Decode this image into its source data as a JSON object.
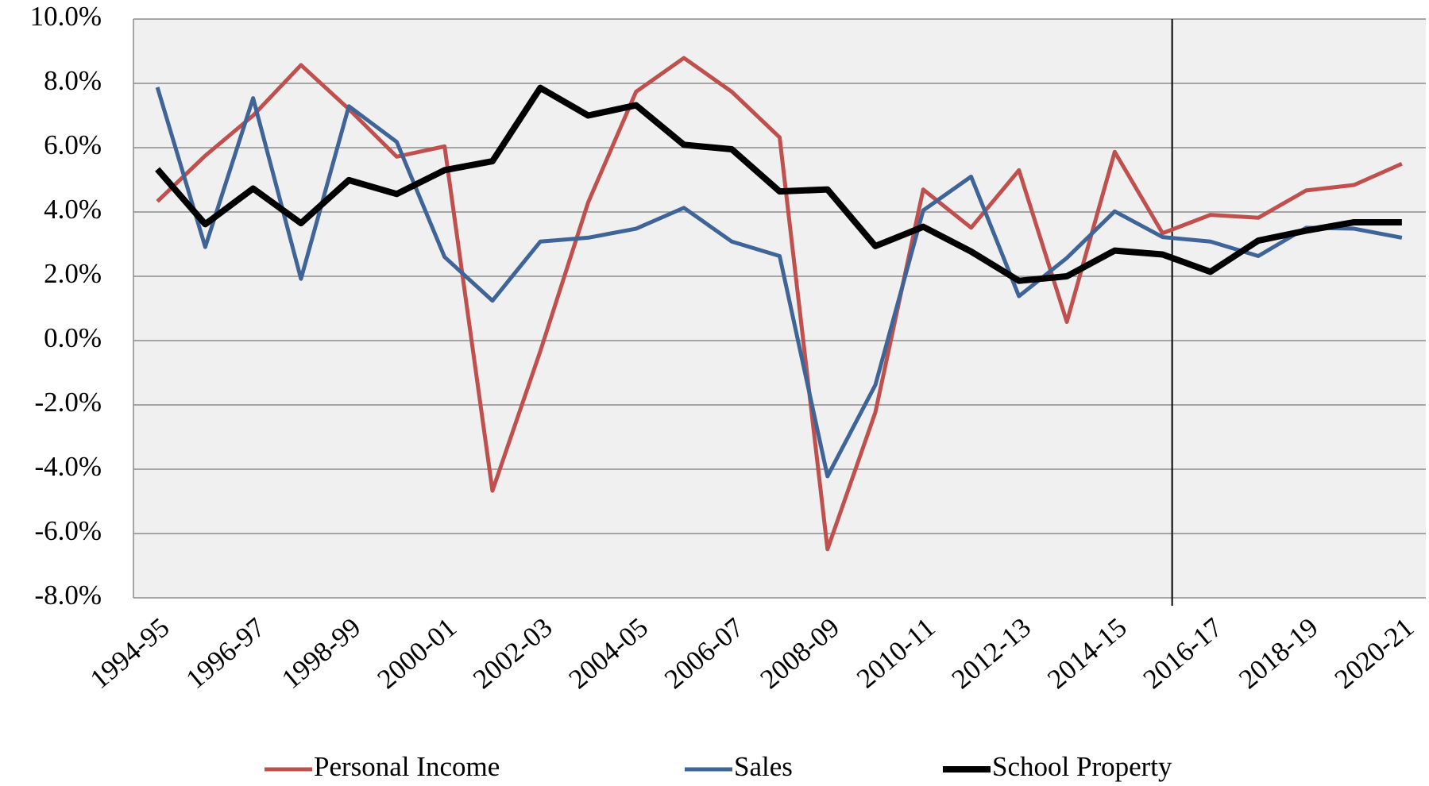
{
  "chart_data": {
    "type": "line",
    "categories": [
      "1994-95",
      null,
      "1996-97",
      null,
      "1998-99",
      null,
      "2000-01",
      null,
      "2002-03",
      null,
      "2004-05",
      null,
      "2006-07",
      null,
      "2008-09",
      null,
      "2010-11",
      null,
      "2012-13",
      null,
      "2014-15",
      null,
      "2016-17",
      null,
      "2018-19",
      null,
      "2020-21"
    ],
    "series": [
      {
        "name": "Personal Income",
        "color": "#c0504d",
        "width": 5,
        "values": [
          4.33,
          5.75,
          7.0,
          8.57,
          7.2,
          5.72,
          6.04,
          -4.67,
          -0.33,
          4.3,
          7.74,
          8.79,
          7.74,
          6.32,
          -6.49,
          -2.23,
          4.7,
          3.51,
          5.3,
          0.58,
          5.87,
          3.34,
          3.91,
          3.82,
          4.67,
          4.84,
          5.5
        ]
      },
      {
        "name": "Sales",
        "color": "#3f6498",
        "width": 5,
        "values": [
          7.88,
          2.91,
          7.54,
          1.92,
          7.29,
          6.18,
          2.6,
          1.24,
          3.08,
          3.2,
          3.48,
          4.13,
          3.08,
          2.63,
          -4.22,
          -1.38,
          4.05,
          5.1,
          1.38,
          2.57,
          4.02,
          3.22,
          3.08,
          2.63,
          3.51,
          3.48,
          3.2
        ]
      },
      {
        "name": "School Property",
        "color": "#000000",
        "width": 8,
        "values": [
          5.33,
          3.62,
          4.73,
          3.65,
          4.99,
          4.56,
          5.3,
          5.58,
          7.86,
          7.0,
          7.32,
          6.09,
          5.95,
          4.64,
          4.7,
          2.94,
          3.54,
          2.77,
          1.86,
          2.0,
          2.8,
          2.68,
          2.14,
          3.11,
          3.42,
          3.68,
          3.68
        ]
      }
    ],
    "ylim": [
      -8,
      10
    ],
    "yticks": [
      {
        "value": -8,
        "label": "-8.0%"
      },
      {
        "value": -6,
        "label": "-6.0%"
      },
      {
        "value": -4,
        "label": "-4.0%"
      },
      {
        "value": -2,
        "label": "-2.0%"
      },
      {
        "value": 0,
        "label": "0.0%"
      },
      {
        "value": 2,
        "label": "2.0%"
      },
      {
        "value": 4,
        "label": "4.0%"
      },
      {
        "value": 6,
        "label": "6.0%"
      },
      {
        "value": 8,
        "label": "8.0%"
      },
      {
        "value": 10,
        "label": "10.0%"
      }
    ],
    "grid": true,
    "legend": "bottom"
  }
}
